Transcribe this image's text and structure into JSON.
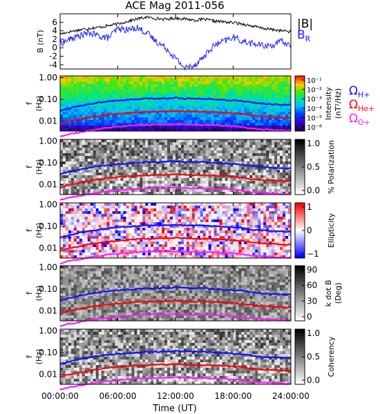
{
  "title": "ACE Mag 2011-056",
  "xaxis": {
    "label": "Time (UT)",
    "ticks": [
      "00:00:00",
      "06:00:00",
      "12:00:00",
      "18:00:00",
      "24:00:00"
    ],
    "range_hours": [
      0,
      24
    ]
  },
  "colors": {
    "total_field": "#000000",
    "radial_field": "#1a1aff",
    "proton_gyro": "#1010ff",
    "helium_gyro": "#ff0000",
    "oxygen_gyro": "#ff1cff"
  },
  "chart_data": [
    {
      "type": "line",
      "panel": "magnetic_field",
      "ylabel": "B (nT)",
      "ylim": [
        -5,
        8
      ],
      "yticks": [
        "6",
        "4",
        "2",
        "0",
        "-2",
        "-4"
      ],
      "legend": [
        "|B|",
        "B_R"
      ],
      "series": [
        {
          "name": "|B|",
          "x_hours": [
            0,
            1,
            2,
            3,
            4,
            5,
            6,
            7,
            8,
            9,
            10,
            11,
            12,
            13,
            14,
            15,
            16,
            17,
            18,
            19,
            20,
            21,
            22,
            23,
            24
          ],
          "values": [
            3.2,
            3.8,
            4.2,
            4.6,
            4.8,
            5.2,
            5.6,
            6.2,
            6.8,
            7.2,
            6.9,
            6.7,
            7.0,
            6.8,
            6.5,
            6.7,
            6.3,
            6.1,
            5.9,
            5.6,
            5.1,
            4.6,
            4.3,
            4.0,
            3.8
          ]
        },
        {
          "name": "B_R",
          "x_hours": [
            0,
            1,
            2,
            3,
            4,
            5,
            6,
            7,
            8,
            9,
            10,
            11,
            12,
            13,
            14,
            15,
            16,
            17,
            18,
            19,
            20,
            21,
            22,
            23,
            24
          ],
          "values": [
            1.0,
            2.0,
            2.8,
            3.5,
            2.8,
            2.3,
            4.5,
            4.2,
            4.8,
            3.5,
            1.5,
            0.0,
            -2.5,
            -4.8,
            -4.0,
            -2.0,
            0.5,
            1.5,
            2.5,
            1.5,
            1.0,
            0.5,
            0.5,
            1.5,
            0.5
          ]
        }
      ]
    },
    {
      "type": "heatmap",
      "panel": "intensity",
      "ylabel": "f (Hz)",
      "yscale": "log",
      "yticks": [
        "1.00",
        "0.10",
        "0.01"
      ],
      "colorbar": {
        "label": "Intensity (nT²/Hz)",
        "ticks": [
          "10⁻¹",
          "10⁻²",
          "10⁻³",
          "10⁻⁴",
          "10⁻⁵",
          "10⁻⁶"
        ],
        "palette": "rainbow"
      },
      "legend": [
        "Ω_H+",
        "Ω_He+",
        "Ω_O+"
      ]
    },
    {
      "type": "heatmap",
      "panel": "polarization",
      "ylabel": "f (Hz)",
      "yscale": "log",
      "yticks": [
        "1.00",
        "0.10",
        "0.01"
      ],
      "colorbar": {
        "label": "% Polarization",
        "ticks": [
          "1.0",
          "0.5",
          "0.0"
        ],
        "palette": "grayscale"
      }
    },
    {
      "type": "heatmap",
      "panel": "ellipticity",
      "ylabel": "f (Hz)",
      "yscale": "log",
      "yticks": [
        "1.00",
        "0.10",
        "0.01"
      ],
      "colorbar": {
        "label": "Ellipticity",
        "ticks": [
          "1",
          "0",
          "−1"
        ],
        "palette": "blue-white-red"
      }
    },
    {
      "type": "heatmap",
      "panel": "k_dot_B",
      "ylabel": "f (Hz)",
      "yscale": "log",
      "yticks": [
        "1.00",
        "0.10",
        "0.01"
      ],
      "colorbar": {
        "label": "k dot B (Deg)",
        "ticks": [
          "90",
          "60",
          "30",
          "0"
        ],
        "palette": "grayscale"
      }
    },
    {
      "type": "heatmap",
      "panel": "coherency",
      "ylabel": "f (Hz)",
      "yscale": "log",
      "yticks": [
        "1.00",
        "0.10",
        "0.01"
      ],
      "colorbar": {
        "label": "Coherency",
        "ticks": [
          "1.0",
          "0.5",
          "0.0"
        ],
        "palette": "grayscale"
      }
    }
  ],
  "gyrofrequency_lines": {
    "x_hours": [
      0,
      1,
      2,
      3,
      4,
      5,
      6,
      7,
      8,
      9,
      10,
      11,
      12,
      13,
      14,
      15,
      16,
      17,
      18,
      19,
      20,
      21,
      22,
      23,
      24
    ],
    "proton_hz": [
      0.03,
      0.04,
      0.05,
      0.06,
      0.07,
      0.08,
      0.09,
      0.095,
      0.1,
      0.11,
      0.11,
      0.11,
      0.12,
      0.11,
      0.11,
      0.11,
      0.1,
      0.095,
      0.09,
      0.085,
      0.07,
      0.065,
      0.06,
      0.058,
      0.055
    ],
    "helium_hz": [
      0.0075,
      0.01,
      0.012,
      0.015,
      0.017,
      0.02,
      0.022,
      0.024,
      0.026,
      0.027,
      0.028,
      0.028,
      0.03,
      0.028,
      0.027,
      0.027,
      0.026,
      0.025,
      0.023,
      0.021,
      0.018,
      0.017,
      0.016,
      0.015,
      0.014
    ],
    "oxygen_hz": [
      0.002,
      0.0026,
      0.003,
      0.0037,
      0.0043,
      0.005,
      0.0055,
      0.006,
      0.0065,
      0.0068,
      0.007,
      0.007,
      0.0073,
      0.007,
      0.0068,
      0.0067,
      0.0065,
      0.0062,
      0.0058,
      0.0053,
      0.0045,
      0.0043,
      0.004,
      0.0038,
      0.0036
    ]
  }
}
